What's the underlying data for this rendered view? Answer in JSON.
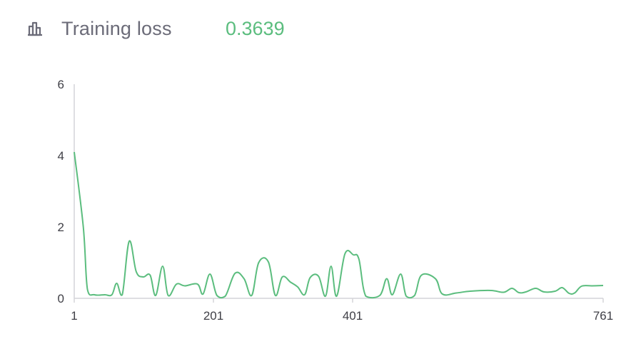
{
  "header": {
    "icon": "bar-chart-icon",
    "title": "Training loss",
    "value": "0.3639",
    "value_color": "#5bbd7e"
  },
  "chart_data": {
    "type": "line",
    "title": "Training loss",
    "xlabel": "",
    "ylabel": "",
    "xlim": [
      1,
      761
    ],
    "ylim": [
      0,
      6
    ],
    "x_ticks": [
      "1",
      "201",
      "401",
      "761"
    ],
    "y_ticks": [
      "0",
      "2",
      "4",
      "6"
    ],
    "grid": false,
    "line_color": "#5bbd7e",
    "series": [
      {
        "name": "",
        "points": [
          [
            1,
            4.1
          ],
          [
            14,
            2.0
          ],
          [
            20,
            0.25
          ],
          [
            30,
            0.1
          ],
          [
            45,
            0.1
          ],
          [
            55,
            0.1
          ],
          [
            62,
            0.42
          ],
          [
            70,
            0.1
          ],
          [
            80,
            1.6
          ],
          [
            90,
            0.75
          ],
          [
            100,
            0.6
          ],
          [
            110,
            0.65
          ],
          [
            118,
            0.08
          ],
          [
            128,
            0.9
          ],
          [
            136,
            0.08
          ],
          [
            148,
            0.4
          ],
          [
            160,
            0.35
          ],
          [
            178,
            0.4
          ],
          [
            186,
            0.12
          ],
          [
            196,
            0.68
          ],
          [
            206,
            0.08
          ],
          [
            218,
            0.06
          ],
          [
            232,
            0.7
          ],
          [
            245,
            0.55
          ],
          [
            256,
            0.08
          ],
          [
            266,
            1.0
          ],
          [
            280,
            1.02
          ],
          [
            290,
            0.08
          ],
          [
            300,
            0.6
          ],
          [
            312,
            0.45
          ],
          [
            322,
            0.32
          ],
          [
            332,
            0.1
          ],
          [
            340,
            0.58
          ],
          [
            352,
            0.62
          ],
          [
            362,
            0.06
          ],
          [
            370,
            0.9
          ],
          [
            378,
            0.06
          ],
          [
            390,
            1.25
          ],
          [
            402,
            1.22
          ],
          [
            410,
            1.1
          ],
          [
            420,
            0.06
          ],
          [
            440,
            0.08
          ],
          [
            450,
            0.55
          ],
          [
            458,
            0.1
          ],
          [
            470,
            0.68
          ],
          [
            478,
            0.06
          ],
          [
            490,
            0.08
          ],
          [
            500,
            0.65
          ],
          [
            520,
            0.55
          ],
          [
            530,
            0.12
          ],
          [
            550,
            0.15
          ],
          [
            570,
            0.2
          ],
          [
            600,
            0.22
          ],
          [
            618,
            0.17
          ],
          [
            630,
            0.28
          ],
          [
            640,
            0.16
          ],
          [
            650,
            0.18
          ],
          [
            664,
            0.28
          ],
          [
            676,
            0.18
          ],
          [
            692,
            0.2
          ],
          [
            702,
            0.3
          ],
          [
            712,
            0.14
          ],
          [
            720,
            0.15
          ],
          [
            730,
            0.34
          ],
          [
            745,
            0.35
          ],
          [
            761,
            0.36
          ]
        ]
      }
    ]
  }
}
